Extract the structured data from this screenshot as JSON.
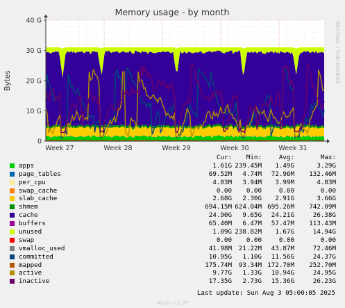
{
  "chart_data": {
    "type": "area",
    "title": "Memory usage - by month",
    "ylabel": "Bytes",
    "watermark": "RRDTOOL / TOBI OETIKER",
    "ylim": [
      0,
      40
    ],
    "y_unit": "G",
    "y_ticks": [
      "0",
      "10 G",
      "20 G",
      "30 G",
      "40 G"
    ],
    "x_ticks": [
      "Week 27",
      "Week 28",
      "Week 29",
      "Week 30",
      "Week 31"
    ],
    "grid": true,
    "legend_headers": [
      "Cur:",
      "Min:",
      "Avg:",
      "Max:"
    ],
    "series": [
      {
        "name": "apps",
        "color": "#00cc00",
        "stack": true,
        "cur": "1.61G",
        "min": "239.45M",
        "avg": "1.49G",
        "max": "3.29G"
      },
      {
        "name": "page_tables",
        "color": "#0066b3",
        "stack": true,
        "cur": "69.52M",
        "min": "4.74M",
        "avg": "72.96M",
        "max": "132.46M"
      },
      {
        "name": "per_cpu",
        "color": "#ffec99",
        "stack": true,
        "cur": "4.03M",
        "min": "3.94M",
        "avg": "3.99M",
        "max": "4.03M"
      },
      {
        "name": "swap_cache",
        "color": "#ff8000",
        "stack": true,
        "cur": "0.00",
        "min": "0.00",
        "avg": "0.00",
        "max": "0.00"
      },
      {
        "name": "slab_cache",
        "color": "#ffcc00",
        "stack": true,
        "cur": "2.68G",
        "min": "2.30G",
        "avg": "2.91G",
        "max": "3.66G"
      },
      {
        "name": "shmem",
        "color": "#008f00",
        "stack": true,
        "cur": "694.15M",
        "min": "624.04M",
        "avg": "695.26M",
        "max": "742.09M"
      },
      {
        "name": "cache",
        "color": "#330099",
        "stack": true,
        "cur": "24.90G",
        "min": "9.65G",
        "avg": "24.21G",
        "max": "26.38G"
      },
      {
        "name": "buffers",
        "color": "#990099",
        "stack": true,
        "cur": "65.40M",
        "min": "6.47M",
        "avg": "57.47M",
        "max": "113.43M"
      },
      {
        "name": "unused",
        "color": "#ccff00",
        "stack": true,
        "cur": "1.09G",
        "min": "238.82M",
        "avg": "1.67G",
        "max": "14.94G"
      },
      {
        "name": "swap",
        "color": "#ff0000",
        "stack": true,
        "cur": "0.00",
        "min": "0.00",
        "avg": "0.00",
        "max": "0.00"
      },
      {
        "name": "vmalloc_used",
        "color": "#808080",
        "stack": false,
        "cur": "41.98M",
        "min": "21.22M",
        "avg": "43.87M",
        "max": "72.46M"
      },
      {
        "name": "committed",
        "color": "#00487d",
        "stack": false,
        "cur": "10.95G",
        "min": "1.10G",
        "avg": "11.56G",
        "max": "24.37G"
      },
      {
        "name": "mapped",
        "color": "#b35a00",
        "stack": false,
        "cur": "175.74M",
        "min": "93.34M",
        "avg": "172.70M",
        "max": "252.70M"
      },
      {
        "name": "active",
        "color": "#b38f00",
        "stack": false,
        "cur": "9.77G",
        "min": "1.33G",
        "avg": "10.94G",
        "max": "24.95G"
      },
      {
        "name": "inactive",
        "color": "#6b006b",
        "stack": false,
        "cur": "17.35G",
        "min": "2.73G",
        "avg": "15.36G",
        "max": "26.23G"
      }
    ]
  },
  "footer": {
    "last_update": "Last update: Sun Aug  3 05:00:05 2025",
    "version": "Munin 2.0.76"
  }
}
